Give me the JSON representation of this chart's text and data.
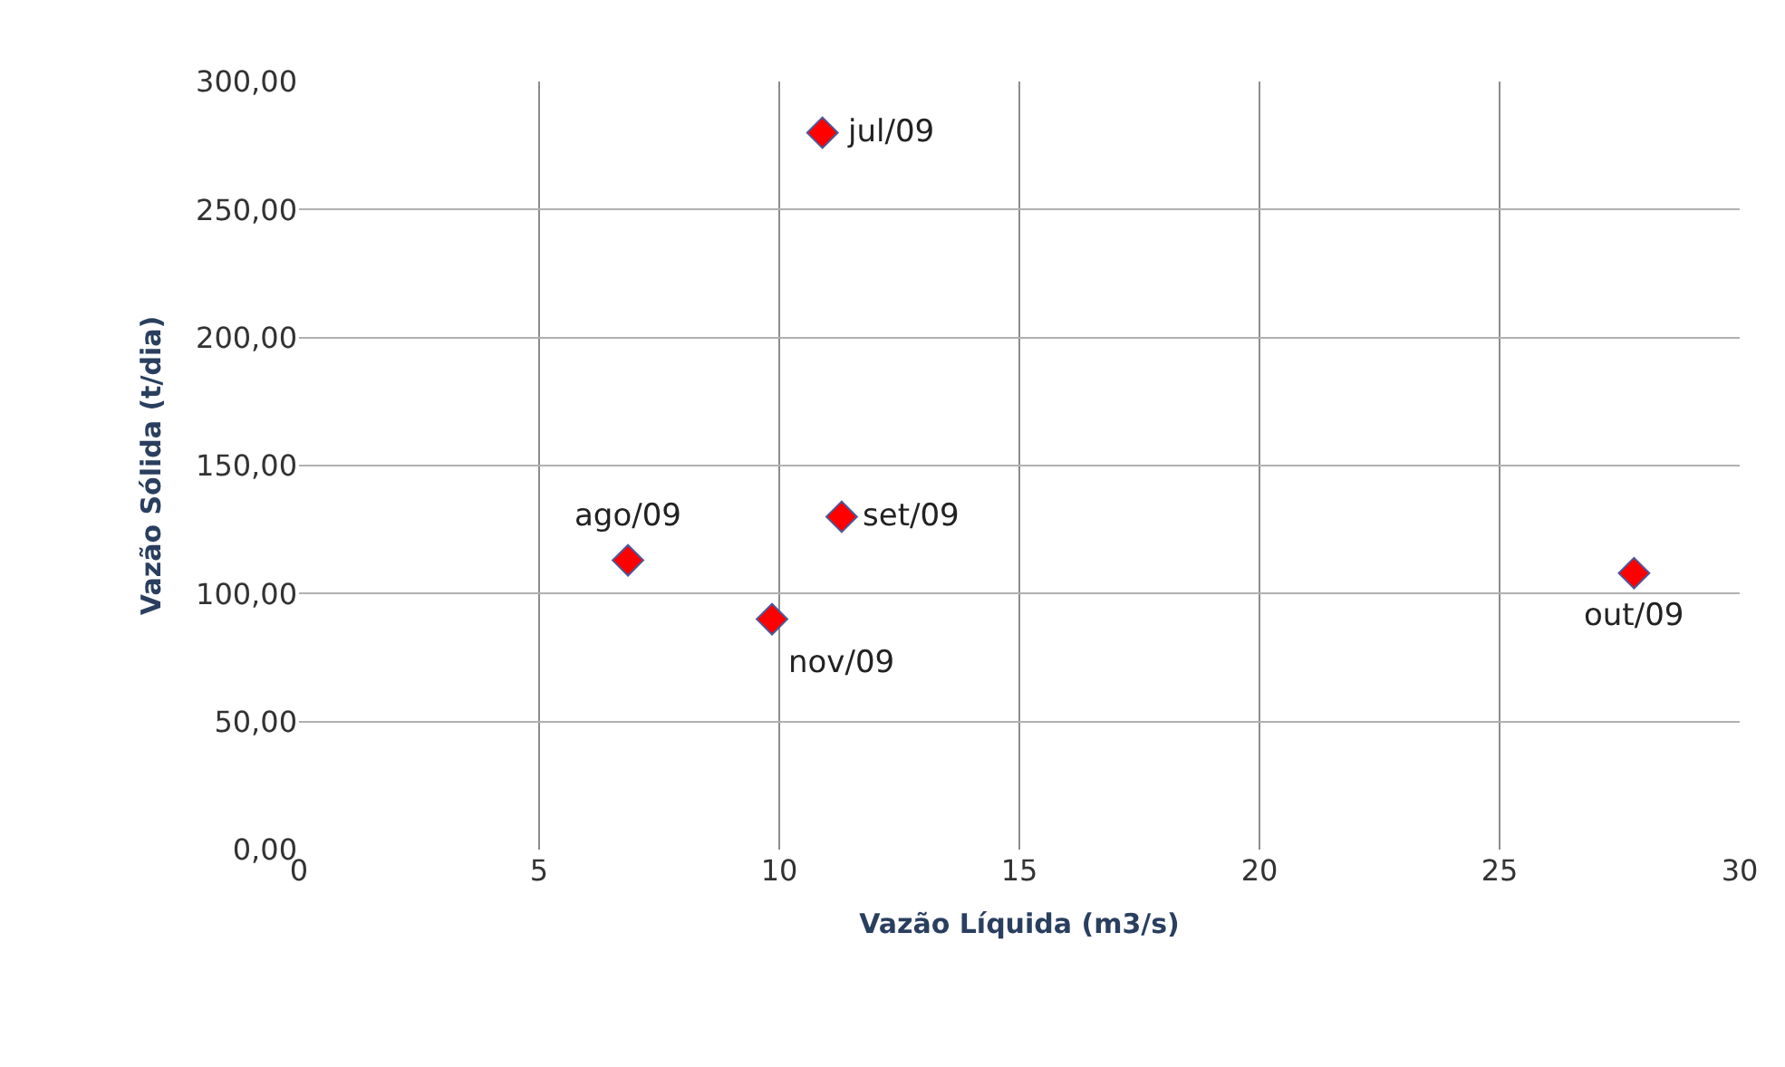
{
  "chart_data": {
    "type": "scatter",
    "xlabel": "Vazão Líquida (m3/s)",
    "ylabel": "Vazão Sólida (t/dia)",
    "x": [
      10.9,
      6.85,
      11.3,
      27.8,
      9.85
    ],
    "series": [
      {
        "color": "#ff0000",
        "values": [
          280,
          113,
          130,
          108,
          90
        ]
      }
    ],
    "annotations": [
      {
        "text": "jul/09",
        "x": 10.9,
        "y": 280
      },
      {
        "text": "ago/09",
        "x": 6.85,
        "y": 113
      },
      {
        "text": "set/09",
        "x": 11.3,
        "y": 130
      },
      {
        "text": "out/09",
        "x": 27.8,
        "y": 108
      },
      {
        "text": "nov/09",
        "x": 9.85,
        "y": 90
      }
    ],
    "xlim": [
      0,
      30
    ],
    "xticks": [
      0,
      5,
      10,
      15,
      20,
      25,
      30
    ],
    "ylim": [
      0,
      300
    ],
    "yticks": [
      {
        "value": 0,
        "label": "0,00"
      },
      {
        "value": 50,
        "label": "50,00"
      },
      {
        "value": 100,
        "label": "100,00"
      },
      {
        "value": 150,
        "label": "150,00"
      },
      {
        "value": 200,
        "label": "200,00"
      },
      {
        "value": 250,
        "label": "250,00"
      },
      {
        "value": 300,
        "label": "300,00"
      }
    ],
    "grid": true,
    "marker": "diamond",
    "legend": false
  }
}
